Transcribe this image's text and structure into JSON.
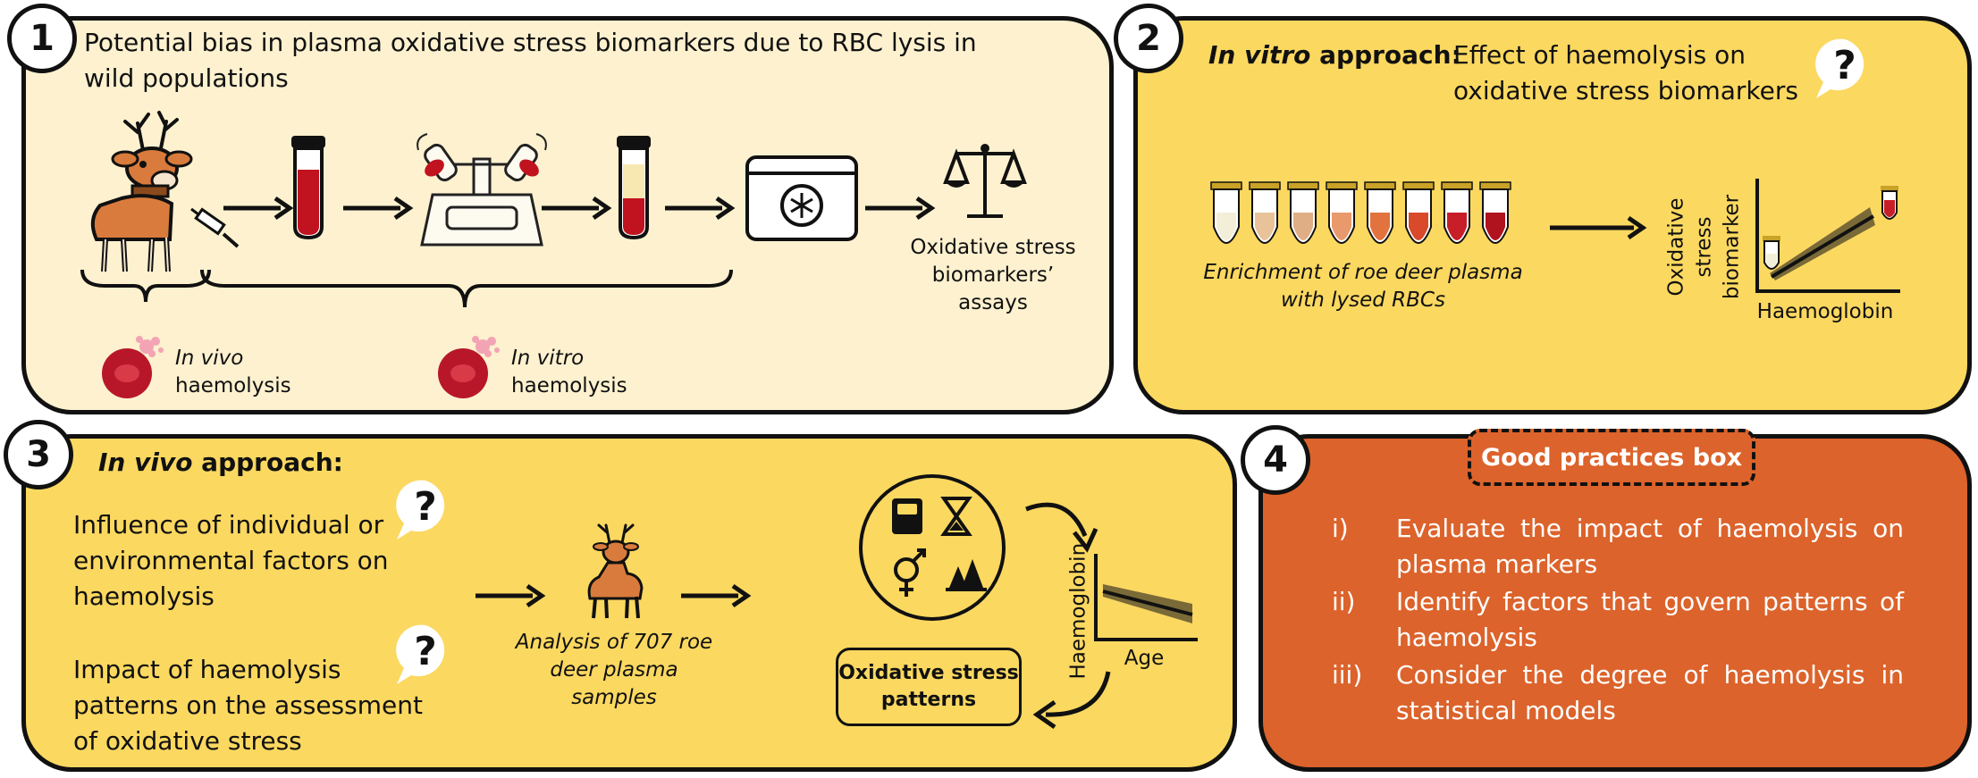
{
  "panel1": {
    "number": "1",
    "title": "Potential bias in plasma oxidative stress biomarkers due to RBC lysis in wild populations",
    "assay_label": "Oxidative stress biomarkers’ assays",
    "in_vivo_label_italic": "In vivo",
    "in_vivo_label_rest": "haemolysis",
    "in_vitro_label_italic": "In vitro",
    "in_vitro_label_rest": "haemolysis"
  },
  "panel2": {
    "number": "2",
    "heading_italic": "In vitro",
    "heading_rest": " approach:",
    "subtitle": "Effect of haemolysis on oxidative stress biomarkers",
    "caption": "Enrichment of roe deer plasma with lysed RBCs",
    "y_axis_label": "Oxidative stress biomarker",
    "x_axis_label": "Haemoglobin",
    "tube_colors": [
      "#f3eed8",
      "#e8c39a",
      "#e0ae85",
      "#e89a6c",
      "#e3733e",
      "#d84a2a",
      "#c81e28",
      "#b0121e"
    ]
  },
  "panel3": {
    "number": "3",
    "heading_italic": "In vivo",
    "heading_rest": " approach:",
    "question1": "Influence of individual or environmental factors on haemolysis",
    "question2": "Impact of haemolysis patterns on the assessment of oxidative stress",
    "analysis_caption": "Analysis of 707 roe deer plasma samples",
    "y_axis_label": "Haemoglobin",
    "x_axis_label": "Age",
    "oxidative_box": "Oxidative stress patterns"
  },
  "panel4": {
    "number": "4",
    "box_title": "Good practices box",
    "items": [
      {
        "num": "i)",
        "text": "Evaluate the impact of haemolysis on plasma markers"
      },
      {
        "num": "ii)",
        "text": "Identify factors that govern patterns of haemolysis"
      },
      {
        "num": "iii)",
        "text": "Consider the degree of haemolysis in statistical models"
      }
    ]
  },
  "colors": {
    "panel1_bg": "#fdf1cf",
    "panel2_bg": "#fbd860",
    "panel3_bg": "#fbd860",
    "panel4_bg": "#dc632b",
    "blood": "#c0121f",
    "deer": "#d97b3c"
  },
  "icons": [
    "deer-icon",
    "syringe-icon",
    "blood-tube-icon",
    "centrifuge-icon",
    "separated-tube-icon",
    "freezer-icon",
    "balance-scale-icon",
    "rbc-icon",
    "question-bubble-icon",
    "weight-scale-icon",
    "hourglass-icon",
    "sex-symbols-icon",
    "forest-icon"
  ]
}
